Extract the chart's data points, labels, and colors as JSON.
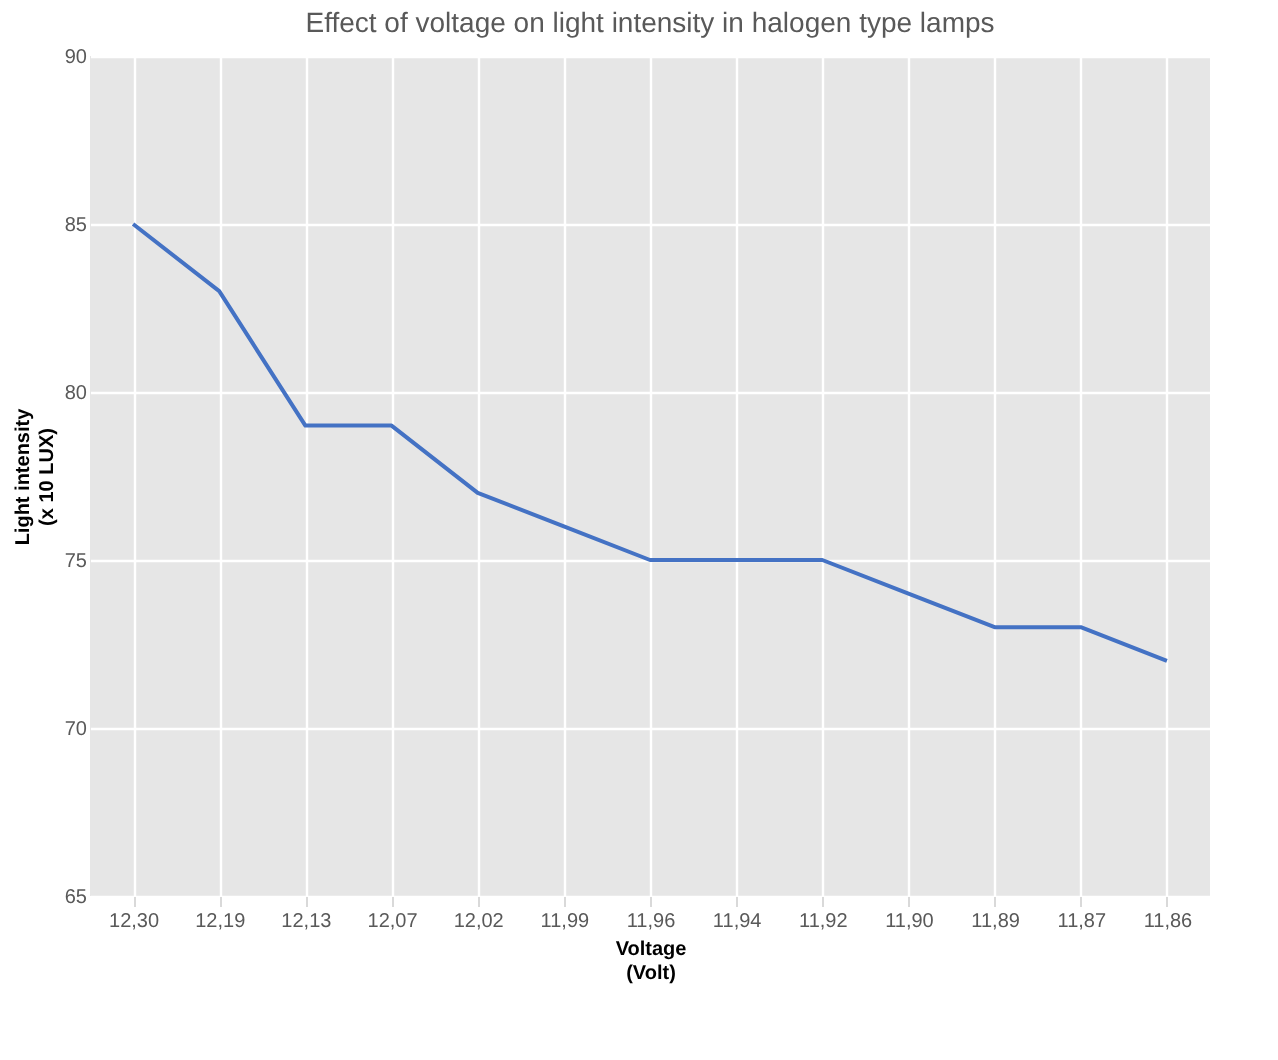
{
  "chart_data": {
    "type": "line",
    "title": "Effect of voltage on light intensity in halogen type lamps",
    "xlabel": "Voltage\n(Volt)",
    "ylabel": "Light intensity\n(x 10 LUX)",
    "categories": [
      "12,30",
      "12,19",
      "12,13",
      "12,07",
      "12,02",
      "11,99",
      "11,96",
      "11,94",
      "11,92",
      "11,90",
      "11,89",
      "11,87",
      "11,86"
    ],
    "series": [
      {
        "color": "#4472c4",
        "values": [
          85,
          83,
          79,
          79,
          77,
          76,
          75,
          75,
          75,
          74,
          73,
          73,
          72
        ]
      }
    ],
    "ylim": [
      65,
      90
    ],
    "yticks": [
      65,
      70,
      75,
      80,
      85,
      90
    ],
    "grid": true,
    "legend": false,
    "marker": "none",
    "line_style": "solid"
  }
}
